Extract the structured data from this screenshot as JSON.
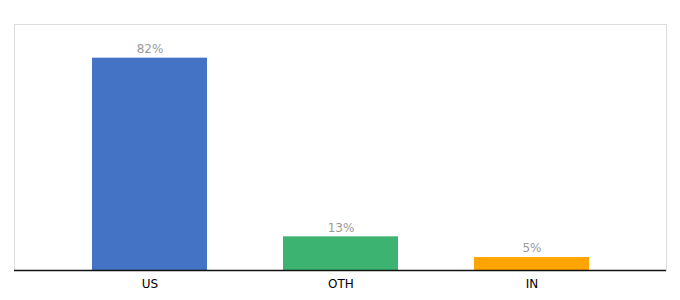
{
  "chart_data": {
    "type": "bar",
    "categories": [
      "US",
      "OTH",
      "IN"
    ],
    "values": [
      82,
      13,
      5
    ],
    "value_labels": [
      "82%",
      "13%",
      "5%"
    ],
    "colors": [
      "#4472C4",
      "#3CB371",
      "#FFA500"
    ],
    "ylim": [
      0,
      95
    ],
    "grid": false,
    "data_labels": true,
    "tick_labels": "x"
  }
}
